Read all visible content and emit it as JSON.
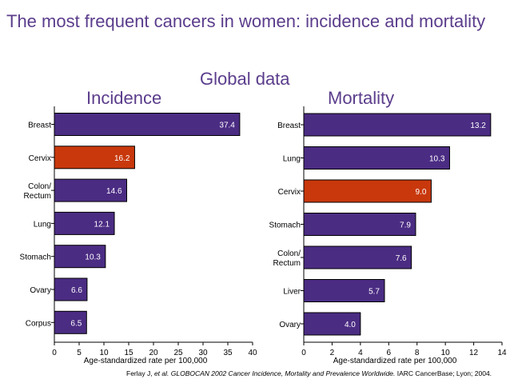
{
  "slide": {
    "title": "The most frequent cancers in women: incidence and mortality",
    "subtitle": "Global data"
  },
  "citation": {
    "authors": "Ferlay J, ",
    "etal": "et al. ",
    "work": "GLOBOCAN 2002 Cancer Incidence, Mortality and Prevalence Worldwide.",
    "source": " IARC CancerBase; Lyon; 2004."
  },
  "colors": {
    "bar": "#4b2c83",
    "highlight": "#c8380c",
    "title": "#5b3d8c"
  },
  "chart_data": [
    {
      "type": "bar",
      "orientation": "horizontal",
      "title": "Incidence",
      "xlabel": "Age-standardized rate per 100,000",
      "categories": [
        "Breast",
        "Cervix",
        "Colon/\nRectum",
        "Lung",
        "Stomach",
        "Ovary",
        "Corpus"
      ],
      "values": [
        37.4,
        16.2,
        14.6,
        12.1,
        10.3,
        6.6,
        6.5
      ],
      "labels": [
        "37.4",
        "16.2",
        "14.6",
        "12.1",
        "10.3",
        "6.6",
        "6.5"
      ],
      "highlight": "Cervix",
      "xlim": [
        0,
        40
      ],
      "xticks": [
        0,
        5,
        10,
        15,
        20,
        25,
        30,
        35,
        40
      ]
    },
    {
      "type": "bar",
      "orientation": "horizontal",
      "title": "Mortality",
      "xlabel": "Age-standardized rate per 100,000",
      "categories": [
        "Breast",
        "Lung",
        "Cervix",
        "Stomach",
        "Colon/\nRectum",
        "Liver",
        "Ovary"
      ],
      "values": [
        13.2,
        10.3,
        9.0,
        7.9,
        7.6,
        5.7,
        4.0
      ],
      "labels": [
        "13.2",
        "10.3",
        "9.0",
        "7.9",
        "7.6",
        "5.7",
        "4.0"
      ],
      "highlight": "Cervix",
      "xlim": [
        0,
        14
      ],
      "xticks": [
        0,
        2,
        4,
        6,
        8,
        10,
        12,
        14
      ]
    }
  ]
}
